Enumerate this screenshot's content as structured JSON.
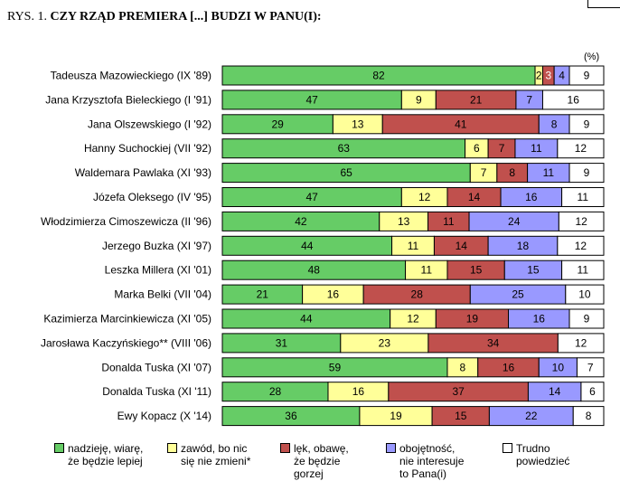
{
  "title_prefix": "RYS. 1.",
  "title_bold": "CZY RZĄD PREMIERA [...] BUDZI W PANU(I):",
  "chart_data": {
    "type": "bar",
    "orientation": "horizontal-stacked-100",
    "unit_label": "(%)",
    "categories": [
      "Tadeusza Mazowieckiego (IX '89)",
      "Jana Krzysztofa Bieleckiego (I '91)",
      "Jana Olszewskiego (I '92)",
      "Hanny Suchockiej (VII '92)",
      "Waldemara Pawlaka (XI '93)",
      "Józefa Oleksego (IV '95)",
      "Włodzimierza Cimoszewicza (II '96)",
      "Jerzego Buzka (XI '97)",
      "Leszka Millera (XI '01)",
      "Marka Belki (VII '04)",
      "Kazimierza Marcinkiewicza (XI '05)",
      "Jarosława Kaczyńskiego** (VIII '06)",
      "Donalda Tuska (XI '07)",
      "Donalda Tuska (XI '11)",
      "Ewy Kopacz (X '14)"
    ],
    "series": [
      {
        "name": "nadzieję, wiarę,\nże będzie lepiej",
        "color": "#66cc66",
        "values": [
          82,
          47,
          29,
          63,
          65,
          47,
          42,
          44,
          48,
          21,
          44,
          31,
          59,
          28,
          36
        ]
      },
      {
        "name": "zawód, bo nic\nsię nie zmieni*",
        "color": "#ffff99",
        "values": [
          2,
          9,
          13,
          6,
          7,
          12,
          13,
          11,
          11,
          16,
          12,
          23,
          8,
          16,
          19
        ]
      },
      {
        "name": "lęk, obawę,\nże będzie\ngorzej",
        "color": "#c0504d",
        "values": [
          3,
          21,
          41,
          7,
          8,
          14,
          11,
          14,
          15,
          28,
          19,
          34,
          16,
          37,
          15
        ]
      },
      {
        "name": "obojętność,\nnie interesuje\nto Pana(i)",
        "color": "#9999ff",
        "values": [
          4,
          7,
          8,
          11,
          11,
          16,
          24,
          18,
          15,
          25,
          16,
          0,
          10,
          14,
          22
        ]
      },
      {
        "name": "Trudno\npowiedzieć",
        "color": "#ffffff",
        "values": [
          9,
          16,
          9,
          12,
          9,
          11,
          12,
          12,
          11,
          10,
          9,
          12,
          7,
          6,
          8
        ]
      }
    ],
    "legend": "bottom"
  }
}
